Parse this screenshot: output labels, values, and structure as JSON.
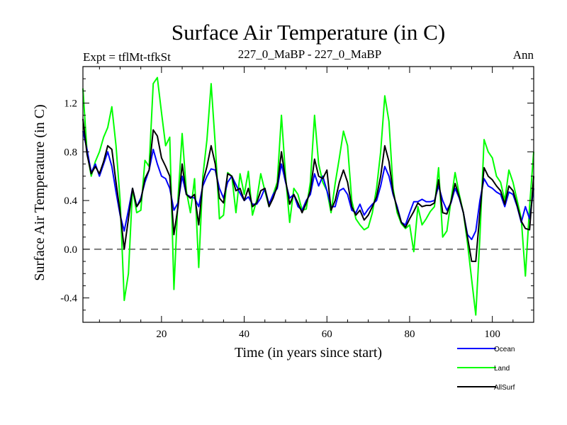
{
  "chart_data": {
    "type": "line",
    "title": "Surface Air Temperature (in C)",
    "subtitle_left": "Expt = tflMt-tfkSt",
    "subtitle_center": "227_0_MaBP - 227_0_MaBP",
    "subtitle_right": "Ann",
    "xlabel": "Time (in years since start)",
    "ylabel": "Surface Air Temperature (in C)",
    "xlim": [
      1,
      110
    ],
    "ylim": [
      -0.6,
      1.5
    ],
    "x_ticks": [
      20,
      40,
      60,
      80,
      100
    ],
    "x_tick_labels": [
      "20",
      "40",
      "60",
      "80",
      "100"
    ],
    "y_ticks": [
      -0.4,
      0.0,
      0.4,
      0.8,
      1.2
    ],
    "y_tick_labels": [
      "-0.4",
      "0.0",
      "0.4",
      "0.8",
      "1.2"
    ],
    "reference_line": 0.0,
    "x_start": 1,
    "series": [
      {
        "name": "Ocean",
        "color": "#0000ff",
        "values": [
          0.97,
          0.82,
          0.63,
          0.7,
          0.6,
          0.7,
          0.8,
          0.68,
          0.47,
          0.28,
          0.15,
          0.32,
          0.5,
          0.35,
          0.42,
          0.55,
          0.65,
          0.82,
          0.7,
          0.6,
          0.58,
          0.5,
          0.32,
          0.38,
          0.6,
          0.45,
          0.43,
          0.42,
          0.35,
          0.52,
          0.6,
          0.66,
          0.65,
          0.5,
          0.42,
          0.55,
          0.6,
          0.53,
          0.46,
          0.4,
          0.43,
          0.37,
          0.37,
          0.42,
          0.5,
          0.37,
          0.45,
          0.5,
          0.7,
          0.55,
          0.42,
          0.45,
          0.35,
          0.32,
          0.4,
          0.45,
          0.62,
          0.52,
          0.6,
          0.48,
          0.35,
          0.35,
          0.48,
          0.5,
          0.45,
          0.32,
          0.3,
          0.37,
          0.28,
          0.33,
          0.37,
          0.4,
          0.52,
          0.68,
          0.6,
          0.45,
          0.35,
          0.22,
          0.2,
          0.3,
          0.39,
          0.39,
          0.41,
          0.39,
          0.39,
          0.4,
          0.52,
          0.4,
          0.32,
          0.38,
          0.5,
          0.42,
          0.3,
          0.12,
          0.08,
          0.15,
          0.4,
          0.58,
          0.52,
          0.5,
          0.47,
          0.45,
          0.35,
          0.47,
          0.45,
          0.35,
          0.22,
          0.35,
          0.25,
          0.5
        ]
      },
      {
        "name": "Land",
        "color": "#00ff00",
        "values": [
          1.32,
          0.8,
          0.6,
          0.72,
          0.8,
          0.92,
          1.0,
          1.17,
          0.85,
          0.4,
          -0.42,
          -0.2,
          0.5,
          0.3,
          0.32,
          0.73,
          0.68,
          1.36,
          1.41,
          1.12,
          0.85,
          0.92,
          -0.33,
          0.42,
          0.95,
          0.48,
          0.3,
          0.58,
          -0.15,
          0.6,
          0.9,
          1.36,
          0.86,
          0.25,
          0.28,
          0.63,
          0.6,
          0.3,
          0.62,
          0.45,
          0.64,
          0.28,
          0.4,
          0.62,
          0.48,
          0.35,
          0.45,
          0.55,
          1.1,
          0.6,
          0.22,
          0.5,
          0.45,
          0.32,
          0.33,
          0.55,
          1.1,
          0.7,
          0.55,
          0.48,
          0.3,
          0.54,
          0.75,
          0.97,
          0.85,
          0.4,
          0.25,
          0.2,
          0.16,
          0.18,
          0.3,
          0.5,
          0.8,
          1.26,
          1.05,
          0.5,
          0.3,
          0.21,
          0.17,
          0.2,
          -0.02,
          0.35,
          0.2,
          0.25,
          0.31,
          0.35,
          0.67,
          0.1,
          0.15,
          0.4,
          0.63,
          0.45,
          0.3,
          0.05,
          -0.25,
          -0.54,
          0.1,
          0.9,
          0.8,
          0.75,
          0.6,
          0.55,
          0.4,
          0.65,
          0.55,
          0.4,
          0.25,
          -0.22,
          0.35,
          0.8
        ]
      },
      {
        "name": "AllSurf",
        "color": "#000000",
        "values": [
          1.07,
          0.78,
          0.62,
          0.68,
          0.62,
          0.72,
          0.85,
          0.82,
          0.55,
          0.3,
          0.0,
          0.25,
          0.5,
          0.35,
          0.4,
          0.58,
          0.65,
          0.98,
          0.93,
          0.75,
          0.68,
          0.6,
          0.12,
          0.35,
          0.7,
          0.45,
          0.42,
          0.45,
          0.2,
          0.55,
          0.68,
          0.85,
          0.7,
          0.42,
          0.38,
          0.62,
          0.6,
          0.48,
          0.5,
          0.4,
          0.5,
          0.35,
          0.38,
          0.48,
          0.5,
          0.35,
          0.42,
          0.52,
          0.8,
          0.57,
          0.37,
          0.45,
          0.38,
          0.3,
          0.38,
          0.48,
          0.74,
          0.6,
          0.58,
          0.65,
          0.32,
          0.4,
          0.55,
          0.65,
          0.55,
          0.35,
          0.28,
          0.32,
          0.24,
          0.28,
          0.35,
          0.43,
          0.6,
          0.85,
          0.72,
          0.47,
          0.33,
          0.22,
          0.18,
          0.25,
          0.31,
          0.38,
          0.35,
          0.36,
          0.36,
          0.38,
          0.57,
          0.3,
          0.29,
          0.39,
          0.54,
          0.43,
          0.3,
          0.1,
          -0.1,
          -0.1,
          0.3,
          0.67,
          0.6,
          0.57,
          0.52,
          0.48,
          0.37,
          0.52,
          0.48,
          0.36,
          0.23,
          0.17,
          0.16,
          0.6
        ]
      }
    ],
    "legend": {
      "placement": "bottom-right",
      "entries": [
        "Ocean",
        "Land",
        "AllSurf"
      ]
    }
  }
}
